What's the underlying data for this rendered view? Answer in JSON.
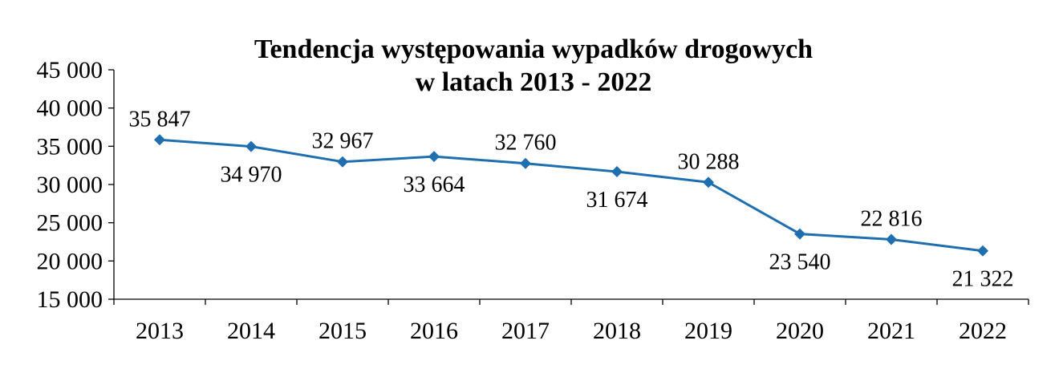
{
  "chart_data": {
    "type": "line",
    "title_lines": [
      "Tendencja występowania wypadków drogowych",
      "w latach 2013 - 2022"
    ],
    "categories": [
      "2013",
      "2014",
      "2015",
      "2016",
      "2017",
      "2018",
      "2019",
      "2020",
      "2021",
      "2022"
    ],
    "series": [
      {
        "values": [
          35847,
          34970,
          32967,
          33664,
          32760,
          31674,
          30288,
          23540,
          22816,
          21322
        ],
        "labels": [
          "35 847",
          "34 970",
          "32 967",
          "33 664",
          "32 760",
          "31 674",
          "30 288",
          "23 540",
          "22 816",
          "21 322"
        ],
        "label_pos": [
          "above",
          "below",
          "above",
          "below",
          "above",
          "below",
          "above",
          "below",
          "above",
          "below"
        ],
        "color": "#1f6fb0",
        "marker": "diamond"
      }
    ],
    "y_ticks": [
      15000,
      20000,
      25000,
      30000,
      35000,
      40000,
      45000
    ],
    "y_tick_labels": [
      "15 000",
      "20 000",
      "25 000",
      "30 000",
      "35 000",
      "40 000",
      "45 000"
    ],
    "ylim": [
      15000,
      45000
    ],
    "grid": false,
    "legend": "none"
  }
}
